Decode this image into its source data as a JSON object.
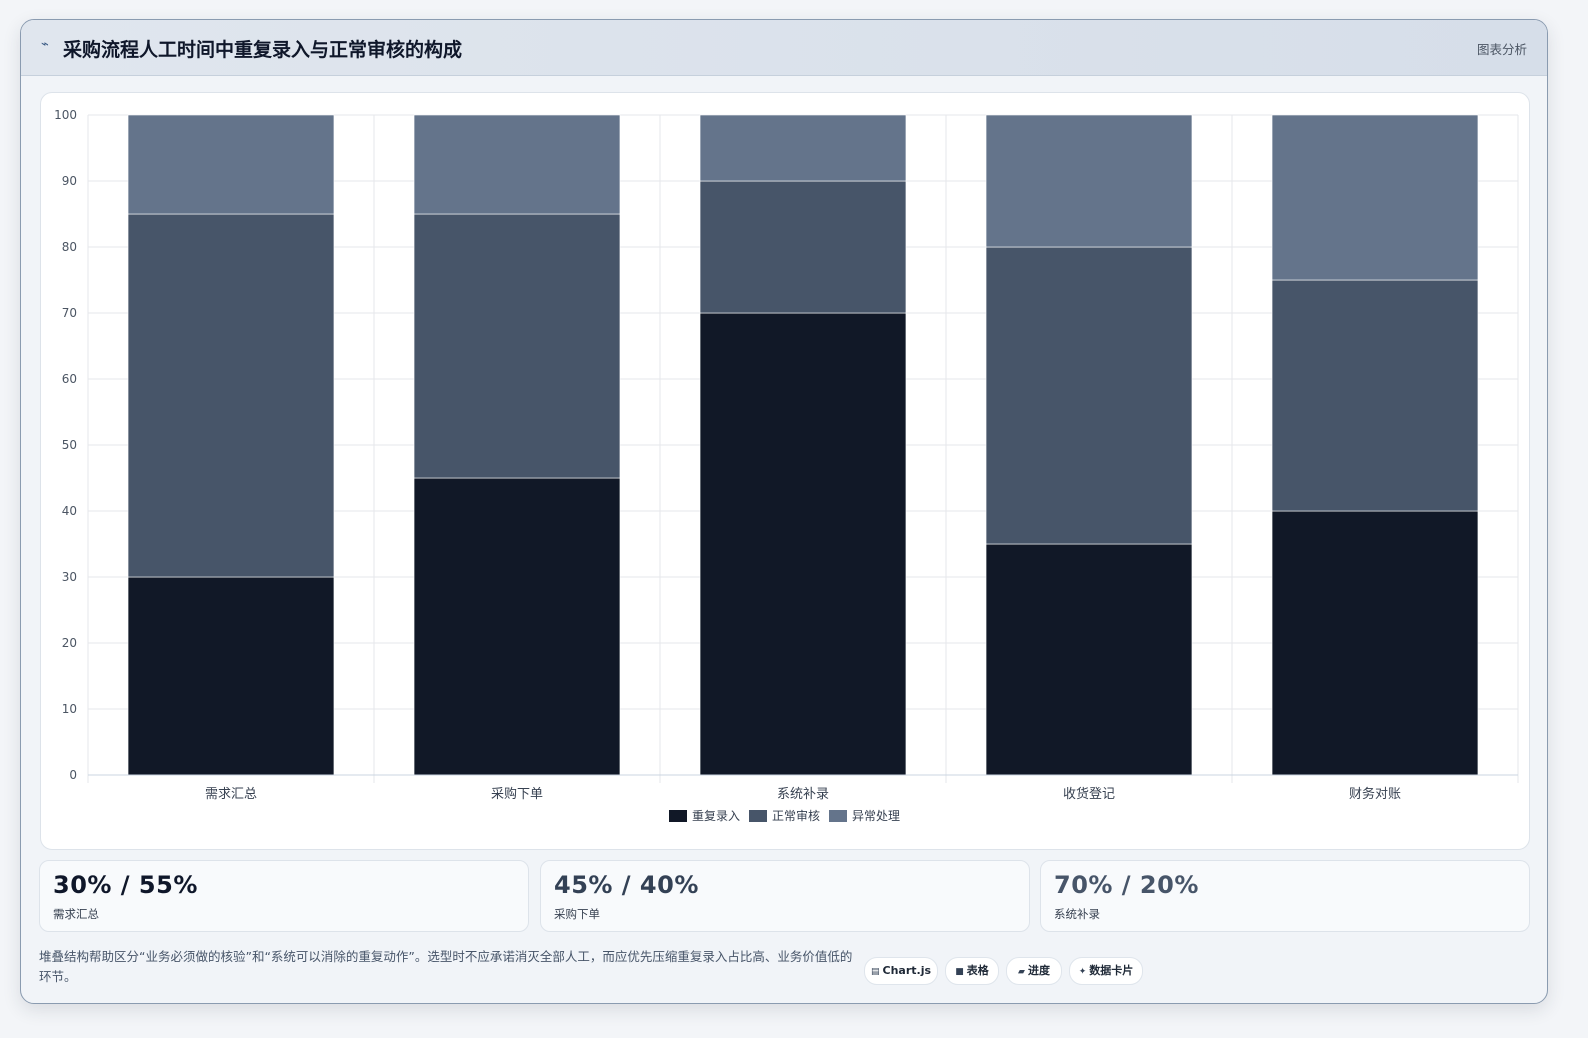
{
  "header": {
    "title": "采购流程人工时间中重复录入与正常审核的构成",
    "tag": "图表分析",
    "icon": "pulse-icon"
  },
  "chart_data": {
    "type": "bar",
    "stacked": true,
    "categories": [
      "需求汇总",
      "采购下单",
      "系统补录",
      "收货登记",
      "财务对账"
    ],
    "series": [
      {
        "name": "重复录入",
        "values": [
          30,
          45,
          70,
          35,
          40
        ],
        "color": "#111827"
      },
      {
        "name": "正常审核",
        "values": [
          55,
          40,
          20,
          45,
          35
        ],
        "color": "#475569"
      },
      {
        "name": "异常处理",
        "values": [
          15,
          15,
          10,
          20,
          25
        ],
        "color": "#64748b"
      }
    ],
    "ylim": [
      0,
      100
    ],
    "yticks": [
      0,
      10,
      20,
      30,
      40,
      50,
      60,
      70,
      80,
      90,
      100
    ],
    "grid": true,
    "legend": "bottom"
  },
  "stats": [
    {
      "value": "30% / 55%",
      "label": "需求汇总",
      "color": "#0f172a"
    },
    {
      "value": "45% / 40%",
      "label": "采购下单",
      "color": "#334155"
    },
    {
      "value": "70% / 20%",
      "label": "系统补录",
      "color": "#475569"
    }
  ],
  "footer": {
    "note": "堆叠结构帮助区分“业务必须做的核验”和“系统可以消除的重复动作”。选型时不应承诺消灭全部人工，而应优先压缩重复录入占比高、业务价值低的环节。",
    "chips": [
      {
        "icon": "chart-icon",
        "glyph": "▤",
        "label": "Chart.js"
      },
      {
        "icon": "table-icon",
        "glyph": "■",
        "label": "表格"
      },
      {
        "icon": "progress-icon",
        "glyph": "▰",
        "label": "进度"
      },
      {
        "icon": "card-icon",
        "glyph": "✦",
        "label": "数据卡片"
      }
    ]
  }
}
